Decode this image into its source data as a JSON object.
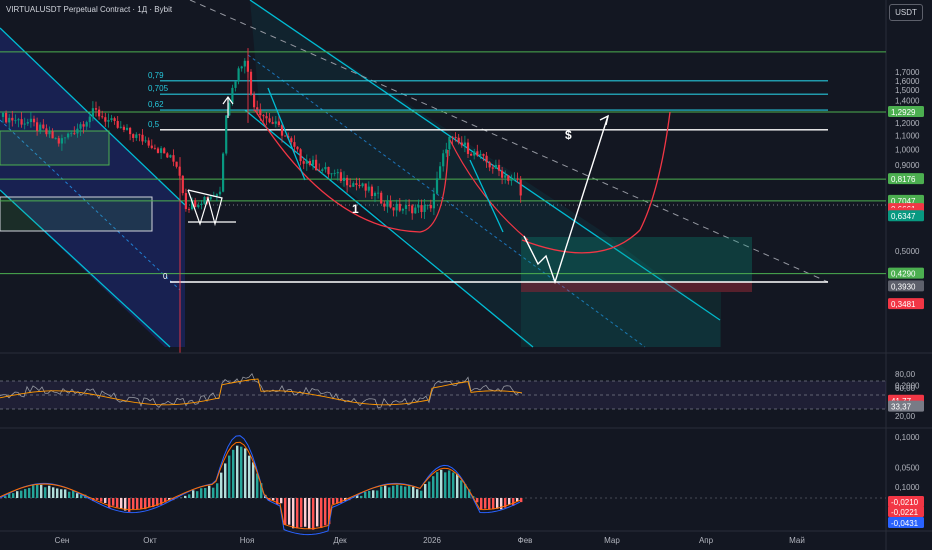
{
  "header": {
    "title": "VIRTUALUSDT Perpetual Contract · 1Д · Bybit",
    "currency": "USDT"
  },
  "chart_data": [
    {
      "type": "candlestick",
      "title": "VIRTUALUSDT Perpetual Contract · 1Д · Bybit",
      "y_scale": "log",
      "ylim": [
        0.09,
        2.0
      ],
      "y_ticks": [
        {
          "v": 1.7,
          "label": "1,7000"
        },
        {
          "v": 1.6,
          "label": "1,6000"
        },
        {
          "v": 1.5,
          "label": "1,5000"
        },
        {
          "v": 1.4,
          "label": "1,4000"
        },
        {
          "v": 1.2,
          "label": "1,2000"
        },
        {
          "v": 1.1,
          "label": "1,1000"
        },
        {
          "v": 1.0,
          "label": "1,0000"
        },
        {
          "v": 0.9,
          "label": "0,9000"
        },
        {
          "v": 0.5,
          "label": "0,5000"
        },
        {
          "v": 0.2,
          "label": "0,2000"
        },
        {
          "v": 0.1,
          "label": "0,1000"
        }
      ],
      "x_ticks": [
        "Сен",
        "Окт",
        "Ноя",
        "Дек",
        "2026",
        "Фев",
        "Мар",
        "Апр",
        "Май"
      ],
      "price_badges": [
        {
          "label": "1,2929",
          "v": 1.2929,
          "color": "#4caf50"
        },
        {
          "label": "0,8176",
          "v": 0.8176,
          "color": "#4caf50"
        },
        {
          "label": "0,7047",
          "v": 0.7047,
          "color": "#4caf50"
        },
        {
          "label": "0,6661",
          "v": 0.6661,
          "color": "#f23645"
        },
        {
          "label": "08:42:51",
          "v": 0.645,
          "color": "#f23645"
        },
        {
          "label": "0,6347",
          "v": 0.6347,
          "color": "#089981"
        },
        {
          "label": "0,4290",
          "v": 0.429,
          "color": "#4caf50"
        },
        {
          "label": "0,3930",
          "v": 0.393,
          "color": "#5d606b"
        },
        {
          "label": "0,3481",
          "v": 0.3481,
          "color": "#f23645"
        }
      ],
      "fib_levels": [
        {
          "label": "0,79",
          "v": 1.6
        },
        {
          "label": "0,705",
          "v": 1.46
        },
        {
          "label": "0,62",
          "v": 1.31
        },
        {
          "label": "0,5",
          "v": 1.145
        },
        {
          "label": "0",
          "v": 0.405
        }
      ],
      "annotations": [
        "1",
        "$"
      ]
    },
    {
      "type": "line",
      "name": "rsi",
      "ylim": [
        10,
        90
      ],
      "y_ticks": [
        {
          "v": 80,
          "label": "80,00"
        },
        {
          "v": 60,
          "label": "60,00"
        },
        {
          "v": 20,
          "label": "20,00"
        }
      ],
      "badges": [
        {
          "label": "41,77",
          "v": 41.77,
          "color": "#f23645"
        },
        {
          "label": "33,37",
          "v": 33.37,
          "color": "#787b86"
        }
      ]
    },
    {
      "type": "bar",
      "name": "macd",
      "ylim": [
        -0.06,
        0.11
      ],
      "y_ticks": [
        {
          "v": 0.1,
          "label": "0,1000"
        },
        {
          "v": 0.05,
          "label": "0,0500"
        }
      ],
      "badges": [
        {
          "label": "-0,0210",
          "v": -0.021,
          "color": "#f23645"
        },
        {
          "label": "-0,0221",
          "v": -0.0221,
          "color": "#f23645"
        },
        {
          "label": "-0,0431",
          "v": -0.0431,
          "color": "#2962ff"
        }
      ]
    }
  ]
}
